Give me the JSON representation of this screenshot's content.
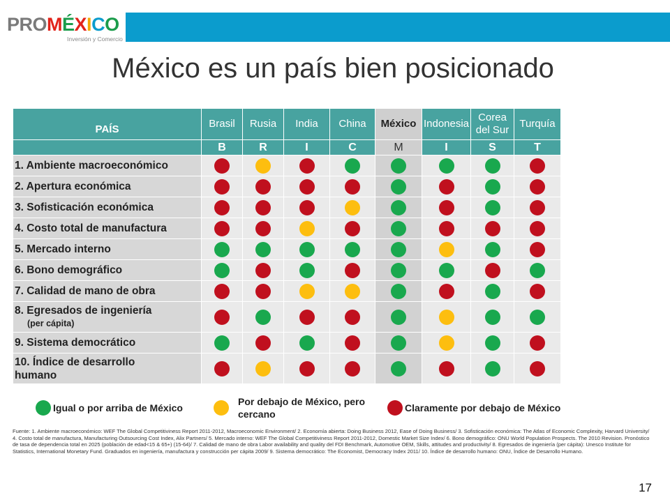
{
  "logo": {
    "pro": "PRO",
    "mex": "MÉXICO",
    "sub": "Inversión y Comercio"
  },
  "colors": {
    "green": "#19a84e",
    "yellow": "#fdbe0f",
    "red": "#c0101e",
    "header": "#48a3a0",
    "topbar": "#0b9ccd"
  },
  "title": "México es un país bien posicionado",
  "table": {
    "pais_label": "PAÍS",
    "countries": [
      "Brasil",
      "Rusia",
      "India",
      "China",
      "México",
      "Indonesia",
      "Corea del Sur",
      "Turquía"
    ],
    "letters": [
      "B",
      "R",
      "I",
      "C",
      "M",
      "I",
      "S",
      "T"
    ],
    "rows": [
      {
        "label": "1. Ambiente macroeconómico",
        "sub": "",
        "ratings": [
          "red",
          "yellow",
          "red",
          "green",
          "green",
          "green",
          "green",
          "red"
        ]
      },
      {
        "label": "2. Apertura económica",
        "sub": "",
        "ratings": [
          "red",
          "red",
          "red",
          "red",
          "green",
          "red",
          "green",
          "red"
        ]
      },
      {
        "label": "3. Sofisticación económica",
        "sub": "",
        "ratings": [
          "red",
          "red",
          "red",
          "yellow",
          "green",
          "red",
          "green",
          "red"
        ]
      },
      {
        "label": "4. Costo total de manufactura",
        "sub": "",
        "ratings": [
          "red",
          "red",
          "yellow",
          "red",
          "green",
          "red",
          "red",
          "red"
        ]
      },
      {
        "label": "5. Mercado interno",
        "sub": "",
        "ratings": [
          "green",
          "green",
          "green",
          "green",
          "green",
          "yellow",
          "green",
          "red"
        ]
      },
      {
        "label": "6. Bono demográfico",
        "sub": "",
        "ratings": [
          "green",
          "red",
          "green",
          "red",
          "green",
          "green",
          "red",
          "green"
        ]
      },
      {
        "label": "7. Calidad de mano de obra",
        "sub": "",
        "ratings": [
          "red",
          "red",
          "yellow",
          "yellow",
          "green",
          "red",
          "green",
          "red"
        ]
      },
      {
        "label": "8. Egresados de ingeniería",
        "sub": "(per cápita)",
        "ratings": [
          "red",
          "green",
          "red",
          "red",
          "green",
          "yellow",
          "green",
          "green"
        ]
      },
      {
        "label": "9. Sistema democrático",
        "sub": "",
        "ratings": [
          "green",
          "red",
          "green",
          "red",
          "green",
          "yellow",
          "green",
          "red"
        ]
      },
      {
        "label": "10. Índice de desarrollo humano",
        "sub": "",
        "ratings": [
          "red",
          "yellow",
          "red",
          "red",
          "green",
          "red",
          "green",
          "red"
        ]
      }
    ]
  },
  "legend": {
    "green": "Igual o por arriba de México",
    "yellow": "Por debajo de México, pero cercano",
    "red": "Claramente por debajo de México"
  },
  "source": "Fuente: 1. Ambiente macroeconómico: WEF The Global Competitiviness Report 2011-2012, Macroeconomic Environment/ 2. Economía abierta: Doing Business 2012, Ease of Doing Business/ 3. Sofisticación económica: The Atlas of Economic Complexity, Harvard University/ 4. Costo total de manufactura, Manufacturing Outsourcing Cost Index, Alix Partners/ 5. Mercado interno: WEF The Global Competitiviness Report 2011-2012, Domestic Market Size Index/ 6. Bono demográfico: ONU World Population Prospects. The 2010 Revision. Pronóstico de tasa de dependencia total en 2025 (población de edad<15 & 65+) (15-64)/ 7. Calidad de mano de obra Labor availability and quality del FDI Benchmark, Automotive OEM, Skills, attitudes and productivity/ 8. Egresados de ingeniería (per cápita): Unesco Institute for Statistics, International Monetary Fund. Graduados en ingeniería, manufactura y construcción per cápita 2009/ 9. Sistema democrático: The Economist, Democracy Index 2011/ 10. Índice de desarrollo humano: ONU, Índice de Desarrollo Humano.",
  "page_number": "17"
}
